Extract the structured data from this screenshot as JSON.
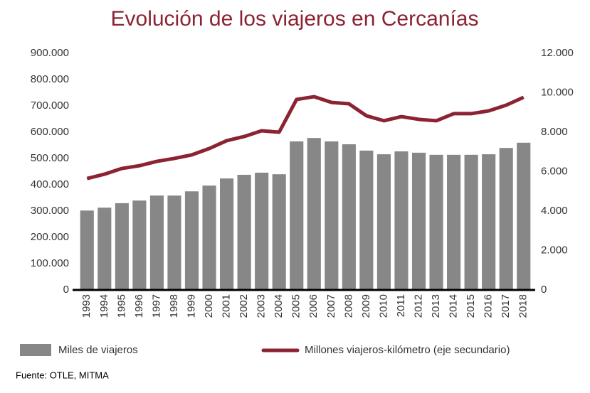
{
  "chart_data": {
    "type": "bar-line",
    "title": "Evolución de los viajeros en Cercanías",
    "source": "Fuente: OTLE, MITMA",
    "categories": [
      "1993",
      "1994",
      "1995",
      "1996",
      "1997",
      "1998",
      "1999",
      "2000",
      "2001",
      "2002",
      "2003",
      "2004",
      "2005",
      "2006",
      "2007",
      "2008",
      "2009",
      "2010",
      "2011",
      "2012",
      "2013",
      "2014",
      "2015",
      "2016",
      "2017",
      "2018"
    ],
    "series": [
      {
        "name": "Miles de viajeros",
        "type": "bar",
        "color": "#878787",
        "values": [
          302000,
          313000,
          330000,
          340000,
          359000,
          359000,
          375000,
          397000,
          424000,
          438000,
          446000,
          440000,
          565000,
          578000,
          565000,
          554000,
          530000,
          516000,
          527000,
          522000,
          514000,
          514000,
          514000,
          516000,
          540000,
          560000
        ]
      },
      {
        "name": "Millones viajeros-kilómetro (eje secundario)",
        "type": "line",
        "axis": "y2",
        "color": "#8b2332",
        "values": [
          5650,
          5870,
          6160,
          6300,
          6520,
          6670,
          6850,
          7170,
          7570,
          7780,
          8070,
          8000,
          9660,
          9800,
          9510,
          9440,
          8830,
          8580,
          8790,
          8650,
          8580,
          8940,
          8940,
          9080,
          9370,
          9770
        ]
      }
    ],
    "ylim": [
      0,
      900000
    ],
    "yticks": [
      0,
      {
        "value": 100000,
        "label": "100.000"
      },
      {
        "value": 200000,
        "label": "200.000"
      },
      {
        "value": 300000,
        "label": "300.000"
      },
      {
        "value": 400000,
        "label": "400.000"
      },
      {
        "value": 500000,
        "label": "500.000"
      },
      {
        "value": 600000,
        "label": "600.000"
      },
      {
        "value": 700000,
        "label": "700.000"
      },
      {
        "value": 800000,
        "label": "800.000"
      },
      {
        "value": 900000,
        "label": "900.000"
      }
    ],
    "y2lim": [
      0,
      12000
    ],
    "y2ticks": [
      0,
      {
        "value": 2000,
        "label": "2.000"
      },
      {
        "value": 4000,
        "label": "4.000"
      },
      {
        "value": 6000,
        "label": "6.000"
      },
      {
        "value": 8000,
        "label": "8.000"
      },
      {
        "value": 10000,
        "label": "10.000"
      },
      {
        "value": 12000,
        "label": "12.000"
      }
    ],
    "grid": false
  }
}
